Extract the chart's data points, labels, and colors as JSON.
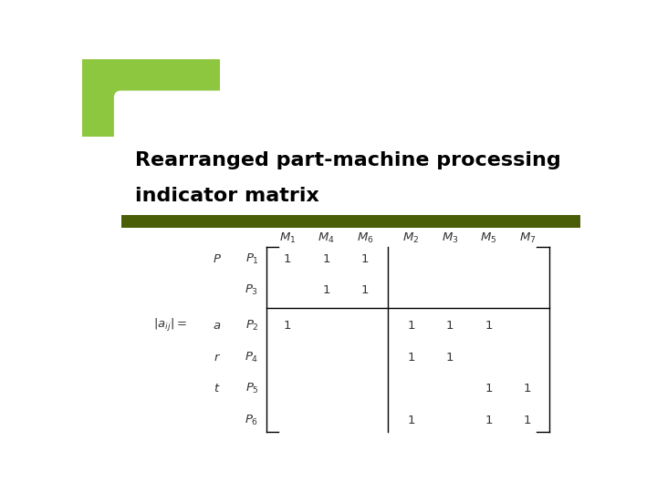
{
  "title_line1": "Rearranged part-machine processing",
  "title_line2": "indicator matrix",
  "title_color": "#000000",
  "title_fontsize": 16,
  "bg_color": "#ffffff",
  "lime_color": "#8dc63f",
  "header_bar_color": "#4a5e08",
  "matrix_data": [
    [
      1,
      1,
      1,
      0,
      0,
      0,
      0
    ],
    [
      0,
      1,
      1,
      0,
      0,
      0,
      0
    ],
    [
      1,
      0,
      0,
      1,
      1,
      1,
      0
    ],
    [
      0,
      0,
      0,
      1,
      1,
      0,
      0
    ],
    [
      0,
      0,
      0,
      0,
      0,
      1,
      1
    ],
    [
      0,
      0,
      0,
      1,
      0,
      1,
      1
    ]
  ],
  "col_labels": [
    "$M_1$",
    "$M_4$",
    "$M_6$",
    "$M_2$",
    "$M_3$",
    "$M_5$",
    "$M_7$"
  ],
  "row_labels": [
    "$P_1$",
    "$P_3$",
    "$P_2$",
    "$P_4$",
    "$P_5$",
    "$P_6$"
  ],
  "part_letters": [
    "P",
    "a",
    "r",
    "t"
  ],
  "part_row_indices": [
    0,
    2,
    3,
    4
  ],
  "label_eq": "$|a_{ij}|=$",
  "label_eq_row": 2,
  "text_color": "#333333",
  "lw": 1.0
}
